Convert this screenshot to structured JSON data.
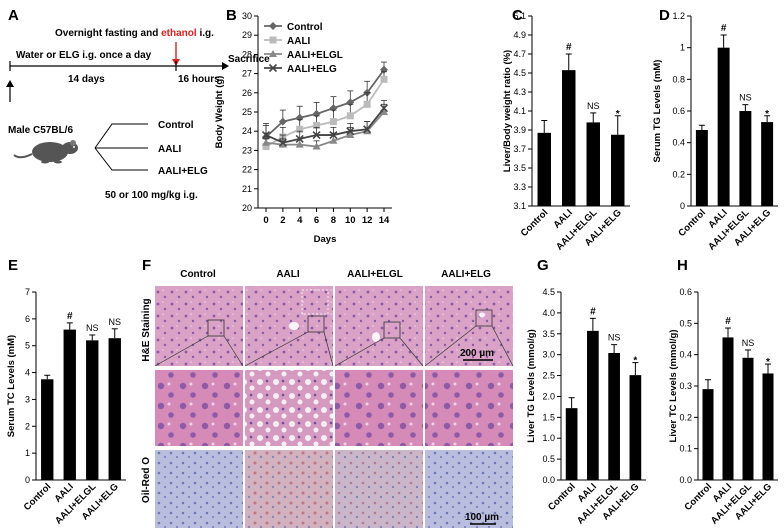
{
  "panels": {
    "A": {
      "label": "A",
      "line1_prefix": "Overnight fasting and ",
      "line1_highlight": "ethanol",
      "line1_suffix": " i.g.",
      "line2": "Water or ELG i.g. once a day",
      "days": "14 days",
      "hours": "16 hours",
      "sacrifice": "Sacrifice",
      "mouse": "Male C57BL/6",
      "groups": [
        "Control",
        "AALI",
        "AALI+ELG"
      ],
      "dose": "50 or 100  mg/kg i.g.",
      "highlight_color": "#e02020"
    },
    "F": {
      "label": "F",
      "columns": [
        "Control",
        "AALI",
        "AALI+ELGL",
        "AALI+ELG"
      ],
      "rows": [
        "H&E Staining",
        "Oil-Red O"
      ],
      "scale_top": "200 µm",
      "scale_bottom": "100 µm"
    }
  },
  "chart_data": [
    {
      "panel": "B",
      "type": "line",
      "xlabel": "Days",
      "ylabel": "Body Weight (g)",
      "x": [
        0,
        2,
        4,
        6,
        8,
        10,
        12,
        14
      ],
      "ylim": [
        20,
        30
      ],
      "yticks": [
        20,
        21,
        22,
        23,
        24,
        25,
        26,
        27,
        28,
        29,
        30
      ],
      "legend_position": "top-left",
      "series": [
        {
          "name": "Control",
          "marker": "diamond",
          "color": "#666666",
          "values": [
            23.7,
            24.5,
            24.7,
            24.9,
            25.2,
            25.5,
            26.0,
            27.2
          ],
          "errors": [
            0.6,
            0.6,
            0.6,
            0.6,
            0.6,
            0.6,
            0.6,
            0.4
          ]
        },
        {
          "name": "AALI",
          "marker": "square",
          "color": "#bbbbbb",
          "values": [
            23.2,
            23.7,
            24.1,
            24.3,
            24.5,
            24.8,
            25.4,
            26.7
          ],
          "errors": [
            0.4,
            0.5,
            0.5,
            0.5,
            0.6,
            0.6,
            0.6,
            0.4
          ]
        },
        {
          "name": "AALI+ELGL",
          "marker": "triangle",
          "color": "#888888",
          "values": [
            23.4,
            23.3,
            23.3,
            23.2,
            23.5,
            23.8,
            24.0,
            25.0
          ],
          "errors": [
            0.5,
            0.3,
            0.3,
            0.3,
            0.4,
            0.4,
            0.5,
            0.4
          ]
        },
        {
          "name": "AALI+ELG",
          "marker": "x",
          "color": "#444444",
          "values": [
            23.8,
            23.4,
            23.6,
            23.8,
            23.8,
            24.0,
            24.1,
            25.2
          ],
          "errors": [
            0.6,
            0.4,
            0.4,
            0.4,
            0.4,
            0.4,
            0.4,
            0.4
          ]
        }
      ]
    },
    {
      "panel": "C",
      "type": "bar",
      "ylabel": "Liver/Body weight ratio (%)",
      "categories": [
        "Control",
        "AALI",
        "AALI+ELGL",
        "AALI+ELG"
      ],
      "values": [
        3.87,
        4.53,
        3.98,
        3.85
      ],
      "errors": [
        0.13,
        0.17,
        0.1,
        0.2
      ],
      "annotations": [
        "",
        "#",
        "NS",
        "*"
      ],
      "ylim": [
        3.1,
        5.1
      ],
      "yticks": [
        3.1,
        3.3,
        3.5,
        3.7,
        3.9,
        4.1,
        4.3,
        4.5,
        4.7,
        4.9,
        5.1
      ],
      "tick_decimals": 1
    },
    {
      "panel": "D",
      "type": "bar",
      "ylabel": "Serum TG Levels (mM)",
      "categories": [
        "Control",
        "AALI",
        "AALI+ELGL",
        "AALI+ELG"
      ],
      "values": [
        0.48,
        1.0,
        0.6,
        0.53
      ],
      "errors": [
        0.03,
        0.08,
        0.04,
        0.04
      ],
      "annotations": [
        "",
        "#",
        "NS",
        "*"
      ],
      "ylim": [
        0,
        1.2
      ],
      "yticks": [
        0,
        0.2,
        0.4,
        0.6,
        0.8,
        1,
        1.2
      ],
      "tick_decimals": -1
    },
    {
      "panel": "E",
      "type": "bar",
      "ylabel": "Serum TC Levels (mM)",
      "categories": [
        "Control",
        "AALI",
        "AALI+ELGL",
        "AALI+ELG"
      ],
      "values": [
        3.75,
        5.6,
        5.2,
        5.28
      ],
      "errors": [
        0.15,
        0.25,
        0.2,
        0.35
      ],
      "annotations": [
        "",
        "#",
        "NS",
        "NS"
      ],
      "ylim": [
        0,
        7
      ],
      "yticks": [
        0,
        1,
        2,
        3,
        4,
        5,
        6,
        7
      ],
      "tick_decimals": 0
    },
    {
      "panel": "G",
      "type": "bar",
      "ylabel": "Liver TG Levels (mmol/g)",
      "categories": [
        "Control",
        "AALI",
        "AALI+ELGL",
        "AALI+ELG"
      ],
      "values": [
        1.72,
        3.57,
        3.04,
        2.51
      ],
      "errors": [
        0.25,
        0.3,
        0.2,
        0.3
      ],
      "annotations": [
        "",
        "#",
        "NS",
        "*"
      ],
      "ylim": [
        0,
        4.5
      ],
      "yticks": [
        0,
        0.5,
        1,
        1.5,
        2,
        2.5,
        3,
        3.5,
        4,
        4.5
      ],
      "tick_decimals": 1
    },
    {
      "panel": "H",
      "type": "bar",
      "ylabel": "Liver TC Levels (mmol/g)",
      "categories": [
        "Control",
        "AALI",
        "AALI+ELGL",
        "AALI+ELG"
      ],
      "values": [
        0.29,
        0.455,
        0.39,
        0.34
      ],
      "errors": [
        0.03,
        0.03,
        0.025,
        0.03
      ],
      "annotations": [
        "",
        "#",
        "NS",
        "*"
      ],
      "ylim": [
        0,
        0.6
      ],
      "yticks": [
        0,
        0.1,
        0.2,
        0.3,
        0.4,
        0.5,
        0.6
      ],
      "tick_decimals": 1
    }
  ]
}
